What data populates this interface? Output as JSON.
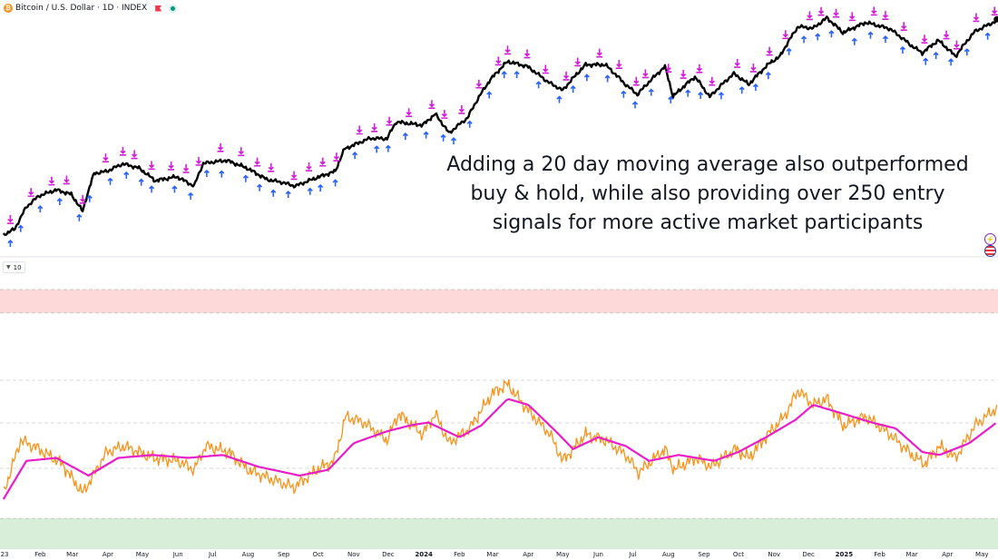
{
  "header": {
    "coin_glyph": "₿",
    "symbol": "Bitcoin / U.S. Dollar · 1D · INDEX"
  },
  "indicator": {
    "collapse_label": "10"
  },
  "annotation": {
    "lines": [
      "Adding a 20 day moving average also outperformed",
      "buy & hold, while also providing over 250 entry",
      "signals for more active market participants"
    ]
  },
  "colors": {
    "price": "#000000",
    "oscillator": "#f7931a",
    "moving_average": "#e91ec8",
    "buy_signal": "#2962ff",
    "sell_signal": "#d21dd8",
    "overbought_zone": "#fdd9d9",
    "oversold_zone": "#d9eed9"
  },
  "chart_data": [
    {
      "type": "line",
      "description_panel": "price",
      "x_type": "date",
      "x_range": [
        "2022-12-28",
        "2025-05-15"
      ],
      "scale": "log",
      "series": [
        {
          "values": [
            [
              "2022-12-31",
              16550
            ],
            [
              "2023-01-10",
              17400
            ],
            [
              "2023-01-20",
              21000
            ],
            [
              "2023-01-31",
              23100
            ],
            [
              "2023-02-15",
              24300
            ],
            [
              "2023-02-28",
              23400
            ],
            [
              "2023-03-10",
              20200
            ],
            [
              "2023-03-20",
              28000
            ],
            [
              "2023-03-31",
              28500
            ],
            [
              "2023-04-14",
              30400
            ],
            [
              "2023-04-28",
              29300
            ],
            [
              "2023-05-12",
              26300
            ],
            [
              "2023-05-31",
              27200
            ],
            [
              "2023-06-15",
              25100
            ],
            [
              "2023-06-23",
              30500
            ],
            [
              "2023-07-13",
              31300
            ],
            [
              "2023-07-31",
              29300
            ],
            [
              "2023-08-17",
              26600
            ],
            [
              "2023-08-31",
              25900
            ],
            [
              "2023-09-11",
              25100
            ],
            [
              "2023-09-30",
              27000
            ],
            [
              "2023-10-16",
              28500
            ],
            [
              "2023-10-24",
              34500
            ],
            [
              "2023-11-15",
              37800
            ],
            [
              "2023-11-30",
              37700
            ],
            [
              "2023-12-08",
              43500
            ],
            [
              "2023-12-31",
              42300
            ],
            [
              "2024-01-11",
              46500
            ],
            [
              "2024-01-23",
              39500
            ],
            [
              "2024-02-08",
              45000
            ],
            [
              "2024-02-28",
              62500
            ],
            [
              "2024-03-14",
              73000
            ],
            [
              "2024-03-31",
              70000
            ],
            [
              "2024-04-18",
              61300
            ],
            [
              "2024-05-01",
              57000
            ],
            [
              "2024-05-21",
              71000
            ],
            [
              "2024-06-07",
              71000
            ],
            [
              "2024-06-24",
              60300
            ],
            [
              "2024-07-05",
              55000
            ],
            [
              "2024-07-29",
              69800
            ],
            [
              "2024-08-05",
              54000
            ],
            [
              "2024-08-24",
              64000
            ],
            [
              "2024-09-06",
              53900
            ],
            [
              "2024-09-27",
              65800
            ],
            [
              "2024-10-10",
              60000
            ],
            [
              "2024-10-29",
              72500
            ],
            [
              "2024-11-06",
              76000
            ],
            [
              "2024-11-22",
              98500
            ],
            [
              "2024-12-05",
              97000
            ],
            [
              "2024-12-17",
              106000
            ],
            [
              "2024-12-31",
              93400
            ],
            [
              "2025-01-20",
              102000
            ],
            [
              "2025-02-10",
              96500
            ],
            [
              "2025-02-28",
              84000
            ],
            [
              "2025-03-10",
              78500
            ],
            [
              "2025-03-24",
              87500
            ],
            [
              "2025-04-08",
              76300
            ],
            [
              "2025-04-25",
              94500
            ],
            [
              "2025-05-14",
              103500
            ]
          ]
        }
      ],
      "signals": {
        "buy_count_shown": 60,
        "sell_count_shown": 58
      }
    },
    {
      "type": "line",
      "description_panel": "oscillator",
      "x_type": "date",
      "x_range": [
        "2022-12-28",
        "2025-05-15"
      ],
      "ylim": [
        0,
        100
      ],
      "zones": {
        "overbought": [
          70,
          100
        ],
        "oversold": [
          0,
          30
        ]
      },
      "levels": [
        70,
        50,
        30
      ],
      "x_tick_labels": [
        "23",
        "Feb",
        "Mar",
        "Apr",
        "May",
        "Jun",
        "Jul",
        "Aug",
        "Sep",
        "Oct",
        "Nov",
        "Dec",
        "2024",
        "Feb",
        "Mar",
        "Apr",
        "May",
        "Jun",
        "Jul",
        "Aug",
        "Sep",
        "Oct",
        "Nov",
        "Dec",
        "2025",
        "Feb",
        "Mar",
        "Apr",
        "May"
      ],
      "series": [
        {
          "values": [
            [
              "2022-12-31",
              32
            ],
            [
              "2023-01-15",
              50
            ],
            [
              "2023-01-31",
              47
            ],
            [
              "2023-02-20",
              42
            ],
            [
              "2023-03-10",
              32
            ],
            [
              "2023-03-31",
              46
            ],
            [
              "2023-04-15",
              48
            ],
            [
              "2023-05-10",
              44
            ],
            [
              "2023-06-01",
              43
            ],
            [
              "2023-06-15",
              40
            ],
            [
              "2023-06-25",
              48
            ],
            [
              "2023-07-15",
              46
            ],
            [
              "2023-08-01",
              40
            ],
            [
              "2023-08-20",
              37
            ],
            [
              "2023-09-10",
              34
            ],
            [
              "2023-09-30",
              40
            ],
            [
              "2023-10-15",
              43
            ],
            [
              "2023-10-25",
              58
            ],
            [
              "2023-11-10",
              56
            ],
            [
              "2023-11-30",
              50
            ],
            [
              "2023-12-10",
              59
            ],
            [
              "2023-12-31",
              52
            ],
            [
              "2024-01-11",
              59
            ],
            [
              "2024-01-23",
              49
            ],
            [
              "2024-02-10",
              54
            ],
            [
              "2024-03-01",
              66
            ],
            [
              "2024-03-14",
              69
            ],
            [
              "2024-04-01",
              60
            ],
            [
              "2024-04-20",
              52
            ],
            [
              "2024-05-01",
              43
            ],
            [
              "2024-05-21",
              52
            ],
            [
              "2024-06-07",
              50
            ],
            [
              "2024-06-25",
              45
            ],
            [
              "2024-07-06",
              39
            ],
            [
              "2024-07-29",
              47
            ],
            [
              "2024-08-06",
              40
            ],
            [
              "2024-08-25",
              44
            ],
            [
              "2024-09-07",
              41
            ],
            [
              "2024-09-28",
              47
            ],
            [
              "2024-10-10",
              44
            ],
            [
              "2024-10-29",
              53
            ],
            [
              "2024-11-10",
              58
            ],
            [
              "2024-11-22",
              67
            ],
            [
              "2024-12-05",
              62
            ],
            [
              "2024-12-17",
              64
            ],
            [
              "2024-12-31",
              55
            ],
            [
              "2025-01-20",
              58
            ],
            [
              "2025-02-10",
              52
            ],
            [
              "2025-03-01",
              45
            ],
            [
              "2025-03-12",
              42
            ],
            [
              "2025-03-25",
              48
            ],
            [
              "2025-04-08",
              44
            ],
            [
              "2025-04-25",
              55
            ],
            [
              "2025-05-14",
              61
            ]
          ]
        },
        {
          "values": [
            [
              "2022-12-31",
              30
            ],
            [
              "2023-01-20",
              43
            ],
            [
              "2023-02-15",
              44
            ],
            [
              "2023-03-15",
              38
            ],
            [
              "2023-04-10",
              44
            ],
            [
              "2023-05-10",
              45
            ],
            [
              "2023-06-10",
              44
            ],
            [
              "2023-07-10",
              45
            ],
            [
              "2023-08-10",
              41
            ],
            [
              "2023-09-15",
              38
            ],
            [
              "2023-10-10",
              40
            ],
            [
              "2023-11-01",
              49
            ],
            [
              "2023-11-30",
              53
            ],
            [
              "2023-12-20",
              55
            ],
            [
              "2024-01-05",
              56
            ],
            [
              "2024-02-01",
              51
            ],
            [
              "2024-02-20",
              55
            ],
            [
              "2024-03-14",
              64
            ],
            [
              "2024-04-01",
              62
            ],
            [
              "2024-04-25",
              53
            ],
            [
              "2024-05-10",
              47
            ],
            [
              "2024-06-01",
              51
            ],
            [
              "2024-06-25",
              48
            ],
            [
              "2024-07-15",
              43
            ],
            [
              "2024-08-10",
              45
            ],
            [
              "2024-09-10",
              43
            ],
            [
              "2024-10-01",
              46
            ],
            [
              "2024-10-25",
              51
            ],
            [
              "2024-11-20",
              57
            ],
            [
              "2024-12-05",
              62
            ],
            [
              "2024-12-31",
              59
            ],
            [
              "2025-01-25",
              56
            ],
            [
              "2025-02-15",
              54
            ],
            [
              "2025-03-10",
              46
            ],
            [
              "2025-03-25",
              45
            ],
            [
              "2025-04-20",
              49
            ],
            [
              "2025-05-14",
              56
            ]
          ]
        }
      ]
    }
  ]
}
